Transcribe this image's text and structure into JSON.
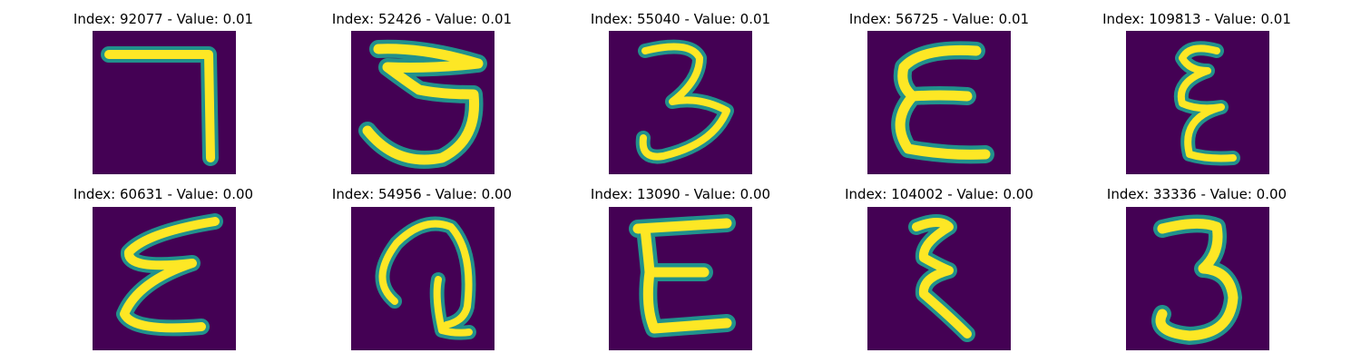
{
  "colors": {
    "background": "#440154",
    "stroke_edge": "#21918c",
    "stroke_core": "#fde725"
  },
  "panels": [
    {
      "title": "Index: 92077 - Value: 0.01",
      "glyph": "seven-like-stroke"
    },
    {
      "title": "Index: 52426 - Value: 0.01",
      "glyph": "three-like-stroke"
    },
    {
      "title": "Index: 55040 - Value: 0.01",
      "glyph": "three-like-stroke"
    },
    {
      "title": "Index: 56725 - Value: 0.01",
      "glyph": "epsilon-like-stroke"
    },
    {
      "title": "Index: 109813 - Value: 0.01",
      "glyph": "epsilon-like-stroke"
    },
    {
      "title": "Index: 60631 - Value: 0.00",
      "glyph": "epsilon-like-stroke"
    },
    {
      "title": "Index: 54956 - Value: 0.00",
      "glyph": "curl-like-stroke"
    },
    {
      "title": "Index: 13090 - Value: 0.00",
      "glyph": "epsilon-like-stroke"
    },
    {
      "title": "Index: 104002 - Value: 0.00",
      "glyph": "epsilon-like-stroke"
    },
    {
      "title": "Index: 33336 - Value: 0.00",
      "glyph": "three-like-stroke"
    }
  ]
}
